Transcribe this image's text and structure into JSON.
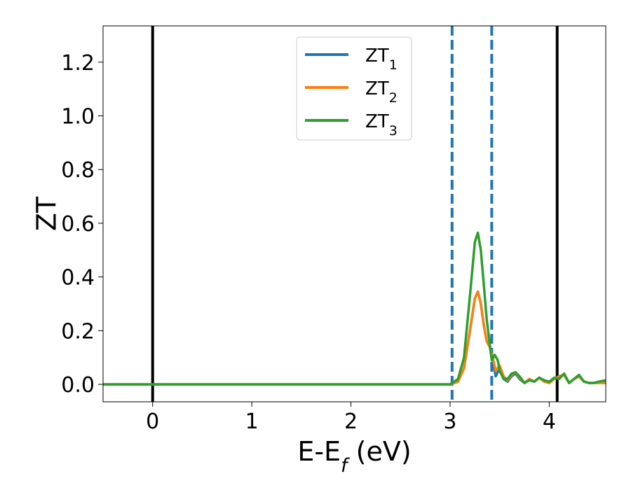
{
  "chart_data": {
    "type": "line",
    "xlabel": {
      "main": "E-E",
      "sub": "f",
      "tail": " (eV)"
    },
    "ylabel": "ZT",
    "xlim": [
      -0.5,
      4.57
    ],
    "ylim": [
      -0.065,
      1.335
    ],
    "x_ticks": [
      0,
      1,
      2,
      3,
      4
    ],
    "x_tick_labels": [
      "0",
      "1",
      "2",
      "3",
      "4"
    ],
    "y_ticks": [
      0.0,
      0.2,
      0.4,
      0.6,
      0.8,
      1.0,
      1.2
    ],
    "y_tick_labels": [
      "0.0",
      "0.2",
      "0.4",
      "0.6",
      "0.8",
      "1.0",
      "1.2"
    ],
    "grid": false,
    "legend_position": "top-center",
    "reference_lines": [
      {
        "x": 0.0,
        "style": "solid",
        "color": "#000000"
      },
      {
        "x": 3.02,
        "style": "dashed",
        "color": "#1f77b4"
      },
      {
        "x": 3.42,
        "style": "dashed",
        "color": "#1f77b4"
      },
      {
        "x": 4.08,
        "style": "solid",
        "color": "#000000"
      }
    ],
    "series": [
      {
        "name": "ZT",
        "sub": "1",
        "color": "#1f77b4",
        "x": [
          -0.5,
          3.0,
          3.08,
          3.14,
          3.2,
          3.25,
          3.28,
          3.31,
          3.34,
          3.37,
          3.4,
          3.43,
          3.46,
          3.5,
          3.54,
          3.58,
          3.62,
          3.66,
          3.7,
          3.75,
          3.8,
          3.85,
          3.9,
          3.95,
          4.0,
          4.05,
          4.1,
          4.15,
          4.2,
          4.25,
          4.3,
          4.35,
          4.4,
          4.45,
          4.5,
          4.57
        ],
        "y": [
          0.0,
          0.0,
          0.01,
          0.06,
          0.2,
          0.32,
          0.345,
          0.3,
          0.22,
          0.16,
          0.14,
          0.09,
          0.03,
          0.06,
          0.02,
          0.01,
          0.03,
          0.04,
          0.02,
          0.005,
          0.02,
          0.01,
          0.025,
          0.01,
          0.005,
          0.02,
          0.03,
          0.035,
          0.005,
          0.02,
          0.03,
          0.01,
          0.005,
          0.005,
          0.01,
          0.005
        ]
      },
      {
        "name": "ZT",
        "sub": "2",
        "color": "#ff7f0e",
        "x": [
          -0.5,
          3.0,
          3.08,
          3.14,
          3.2,
          3.25,
          3.28,
          3.31,
          3.34,
          3.37,
          3.4,
          3.43,
          3.46,
          3.5,
          3.54,
          3.58,
          3.62,
          3.66,
          3.7,
          3.75,
          3.8,
          3.85,
          3.9,
          3.95,
          4.0,
          4.05,
          4.1,
          4.15,
          4.2,
          4.25,
          4.3,
          4.35,
          4.4,
          4.45,
          4.5,
          4.57
        ],
        "y": [
          0.0,
          0.0,
          0.01,
          0.06,
          0.2,
          0.32,
          0.345,
          0.3,
          0.22,
          0.16,
          0.14,
          0.1,
          0.05,
          0.07,
          0.03,
          0.015,
          0.035,
          0.045,
          0.025,
          0.005,
          0.02,
          0.01,
          0.025,
          0.01,
          0.005,
          0.02,
          0.03,
          0.035,
          0.005,
          0.02,
          0.03,
          0.01,
          0.005,
          0.005,
          0.005,
          0.005
        ]
      },
      {
        "name": "ZT",
        "sub": "3",
        "color": "#2ca02c",
        "x": [
          -0.5,
          3.0,
          3.08,
          3.14,
          3.2,
          3.25,
          3.28,
          3.31,
          3.34,
          3.37,
          3.4,
          3.42,
          3.45,
          3.48,
          3.5,
          3.54,
          3.58,
          3.62,
          3.66,
          3.7,
          3.75,
          3.8,
          3.85,
          3.9,
          3.95,
          4.0,
          4.05,
          4.1,
          4.15,
          4.2,
          4.25,
          4.3,
          4.35,
          4.4,
          4.45,
          4.5,
          4.57
        ],
        "y": [
          0.0,
          0.0,
          0.02,
          0.1,
          0.33,
          0.53,
          0.565,
          0.5,
          0.37,
          0.24,
          0.15,
          0.09,
          0.11,
          0.09,
          0.05,
          0.02,
          0.02,
          0.04,
          0.045,
          0.03,
          0.005,
          0.015,
          0.01,
          0.025,
          0.015,
          0.01,
          0.025,
          0.02,
          0.04,
          0.005,
          0.02,
          0.035,
          0.01,
          0.005,
          0.005,
          0.01,
          0.015
        ]
      }
    ]
  }
}
